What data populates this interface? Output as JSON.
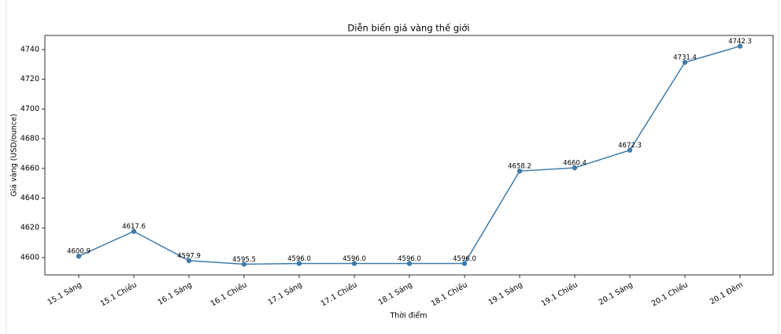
{
  "chart_data": {
    "type": "line",
    "title": "Diễn biến giá vàng thế giới",
    "x_label": "Thời điểm",
    "y_label": "Giá vàng (USD/ounce)",
    "categories": [
      "15.1 Sáng",
      "15.1 Chiều",
      "16.1 Sáng",
      "16.1 Chiều",
      "17.1 Sáng",
      "17.1 Chiều",
      "18.1 Sáng",
      "18.1 Chiều",
      "19.1 Sáng",
      "19.1 Chiều",
      "20.1 Sáng",
      "20.1 Chiều",
      "20.1 Đêm"
    ],
    "values": [
      4600.9,
      4617.6,
      4597.9,
      4595.5,
      4596.0,
      4596.0,
      4596.0,
      4596.0,
      4658.2,
      4660.4,
      4672.3,
      4731.4,
      4742.3
    ],
    "value_labels": [
      "4600.9",
      "4617.6",
      "4597.9",
      "4595.5",
      "4596.0",
      "4596.0",
      "4596.0",
      "4596.0",
      "4658.2",
      "4660.4",
      "4672.3",
      "4731.4",
      "4742.3"
    ],
    "color": "#3f7bab",
    "ylim": [
      4588.3,
      4749.5
    ],
    "yticks": [
      4600,
      4620,
      4640,
      4660,
      4680,
      4700,
      4720,
      4740
    ]
  }
}
